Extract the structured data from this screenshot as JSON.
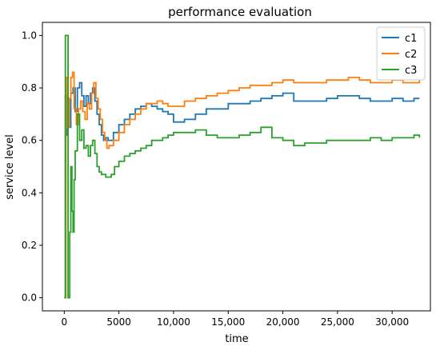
{
  "chart_data": {
    "type": "line",
    "title": "performance evaluation",
    "xlabel": "time",
    "ylabel": "service level",
    "xlim": [
      -2000,
      33500
    ],
    "ylim": [
      -0.05,
      1.05
    ],
    "xticks": [
      0,
      5000,
      10000,
      15000,
      20000,
      25000,
      30000
    ],
    "xtick_labels": [
      "0",
      "5000",
      "10,000",
      "15,000",
      "20,000",
      "25,000",
      "30,000"
    ],
    "yticks": [
      0.0,
      0.2,
      0.4,
      0.6,
      0.8,
      1.0
    ],
    "ytick_labels": [
      "0.0",
      "0.2",
      "0.4",
      "0.6",
      "0.8",
      "1.0"
    ],
    "grid": false,
    "legend_position": "top-right",
    "series": [
      {
        "name": "c1",
        "color": "#1f77b4",
        "x": [
          0,
          100,
          200,
          300,
          450,
          600,
          800,
          1000,
          1200,
          1400,
          1600,
          1800,
          2000,
          2200,
          2400,
          2600,
          2800,
          3000,
          3200,
          3400,
          3600,
          3800,
          4000,
          4500,
          5000,
          5500,
          6000,
          6500,
          7000,
          7500,
          8000,
          8500,
          9000,
          9500,
          10000,
          11000,
          12000,
          13000,
          14000,
          15000,
          16000,
          17000,
          18000,
          19000,
          20000,
          21000,
          22000,
          23000,
          24000,
          25000,
          26000,
          27000,
          28000,
          29000,
          30000,
          31000,
          32000,
          32500
        ],
        "y": [
          0.0,
          0.77,
          0.62,
          0.72,
          0.65,
          0.78,
          0.8,
          0.71,
          0.8,
          0.82,
          0.77,
          0.73,
          0.77,
          0.74,
          0.78,
          0.8,
          0.75,
          0.7,
          0.66,
          0.62,
          0.6,
          0.61,
          0.6,
          0.63,
          0.66,
          0.68,
          0.7,
          0.72,
          0.73,
          0.74,
          0.73,
          0.72,
          0.71,
          0.7,
          0.67,
          0.68,
          0.7,
          0.72,
          0.72,
          0.74,
          0.74,
          0.75,
          0.76,
          0.77,
          0.78,
          0.75,
          0.75,
          0.75,
          0.76,
          0.77,
          0.77,
          0.76,
          0.75,
          0.75,
          0.76,
          0.75,
          0.76,
          0.76
        ]
      },
      {
        "name": "c2",
        "color": "#ff7f0e",
        "x": [
          0,
          150,
          300,
          450,
          600,
          750,
          900,
          1100,
          1300,
          1500,
          1700,
          1900,
          2100,
          2300,
          2500,
          2700,
          2900,
          3100,
          3300,
          3500,
          3700,
          3900,
          4100,
          4500,
          5000,
          5500,
          6000,
          6500,
          7000,
          7500,
          8000,
          8500,
          9000,
          9500,
          10000,
          11000,
          12000,
          13000,
          14000,
          15000,
          16000,
          17000,
          18000,
          19000,
          20000,
          21000,
          22000,
          23000,
          24000,
          25000,
          26000,
          27000,
          28000,
          29000,
          30000,
          31000,
          32000,
          32500
        ],
        "y": [
          0.0,
          0.84,
          0.65,
          0.76,
          0.84,
          0.86,
          0.72,
          0.66,
          0.72,
          0.75,
          0.71,
          0.68,
          0.74,
          0.72,
          0.78,
          0.82,
          0.76,
          0.72,
          0.68,
          0.63,
          0.6,
          0.57,
          0.58,
          0.6,
          0.63,
          0.66,
          0.68,
          0.7,
          0.72,
          0.74,
          0.74,
          0.75,
          0.74,
          0.73,
          0.73,
          0.75,
          0.76,
          0.77,
          0.78,
          0.79,
          0.8,
          0.81,
          0.81,
          0.82,
          0.83,
          0.82,
          0.82,
          0.82,
          0.83,
          0.83,
          0.84,
          0.83,
          0.82,
          0.82,
          0.83,
          0.82,
          0.82,
          0.83
        ]
      },
      {
        "name": "c3",
        "color": "#2ca02c",
        "x": [
          0,
          100,
          200,
          350,
          500,
          600,
          700,
          800,
          900,
          1000,
          1200,
          1400,
          1600,
          1800,
          2000,
          2200,
          2400,
          2600,
          2800,
          3000,
          3200,
          3400,
          3600,
          3800,
          4000,
          4300,
          4600,
          5000,
          5500,
          6000,
          6500,
          7000,
          7500,
          8000,
          8500,
          9000,
          9500,
          10000,
          11000,
          12000,
          13000,
          14000,
          15000,
          16000,
          17000,
          18000,
          19000,
          20000,
          21000,
          22000,
          23000,
          24000,
          25000,
          26000,
          27000,
          28000,
          29000,
          30000,
          31000,
          32000,
          32500
        ],
        "y": [
          0.0,
          1.0,
          1.0,
          0.0,
          0.25,
          0.5,
          0.33,
          0.25,
          0.45,
          0.56,
          0.7,
          0.6,
          0.64,
          0.57,
          0.58,
          0.54,
          0.58,
          0.6,
          0.55,
          0.5,
          0.48,
          0.47,
          0.47,
          0.46,
          0.46,
          0.47,
          0.5,
          0.52,
          0.54,
          0.55,
          0.56,
          0.57,
          0.58,
          0.6,
          0.6,
          0.61,
          0.62,
          0.63,
          0.63,
          0.64,
          0.62,
          0.61,
          0.61,
          0.62,
          0.63,
          0.65,
          0.61,
          0.6,
          0.58,
          0.59,
          0.59,
          0.6,
          0.6,
          0.6,
          0.6,
          0.61,
          0.6,
          0.61,
          0.61,
          0.62,
          0.61
        ]
      }
    ]
  }
}
